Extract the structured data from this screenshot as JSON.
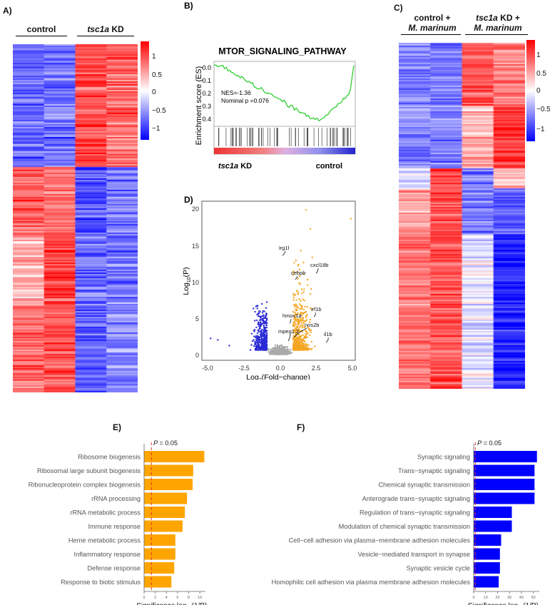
{
  "panels": {
    "A": {
      "label": "A)",
      "group1": "control",
      "group2_italic": "tsc1a",
      "group2_rest": " KD",
      "colorbar_ticks": [
        "1",
        "0.5",
        "0",
        "−0.5",
        "−1"
      ]
    },
    "B": {
      "label": "B)",
      "title": "MTOR_SIGNALING_PATHWAY",
      "ylabel": "Enrichment score (ES)",
      "yticks": [
        "0.0",
        "0.1",
        "0.2",
        "0.3",
        "0.4"
      ],
      "nes": "NES=-1.36",
      "pval": "Nominal p =0.076",
      "left_italic": "tsc1a",
      "left_rest": " KD",
      "right": "control",
      "colors": {
        "curve": "#22cc22"
      }
    },
    "C": {
      "label": "C)",
      "group1_line1": "control +",
      "group1_line2": "M. marinum",
      "group2_line1_italic": "tsc1a",
      "group2_line1_rest": " KD +",
      "group2_line2": "M. marinum",
      "colorbar_ticks": [
        "1",
        "0.5",
        "0",
        "−0.5",
        "−1"
      ]
    },
    "D": {
      "label": "D)",
      "xlabel_pre": "Log",
      "xlabel_sub": "2",
      "xlabel_post": "(Fold−change)",
      "ylabel_pre": "Log",
      "ylabel_sub": "10",
      "ylabel_post": "(P)",
      "xticks": [
        "-5.0",
        "-2.5",
        "0.0",
        "2.5",
        "5.0"
      ],
      "yticks": [
        "0",
        "5",
        "10",
        "15",
        "20"
      ],
      "genes": [
        "irg1l",
        "cxcl18b",
        "cebpb",
        "irf1b",
        "hmox1a",
        "nos2b",
        "mpeg1.2",
        "il1b"
      ],
      "colors": {
        "down": "#2b2bd6",
        "up": "#f5a623",
        "ns": "#aaaaaa"
      }
    },
    "E": {
      "label": "E)",
      "threshold": "P = 0.05",
      "xlabel": "Significance log",
      "xlabel_sub": "10",
      "xlabel_post": "(1/P)",
      "xticks": [
        "0",
        "2",
        "4",
        "6",
        "8",
        "10"
      ],
      "color": "#ffa500"
    },
    "F": {
      "label": "F)",
      "threshold": "P = 0.05",
      "xlabel": "Significance log",
      "xlabel_sub": "10",
      "xlabel_post": "(1/P)",
      "xticks": [
        "0",
        "10",
        "20",
        "30",
        "40",
        "50"
      ],
      "color": "#0000ff"
    }
  },
  "chart_data": [
    {
      "type": "bar",
      "panel": "E",
      "orientation": "horizontal",
      "categories": [
        "Ribosome biogenesis",
        "Ribosomal large subunit biogenesis",
        "Ribonucleoprotein complex biogenesis",
        "rRNA processing",
        "rRNA metabolic process",
        "Immune response",
        "Heme metabolic process",
        "Inflammatory response",
        "Defense response",
        "Response to biotic stimulus"
      ],
      "values": [
        10.8,
        8.8,
        8.7,
        7.7,
        7.3,
        6.9,
        5.6,
        5.6,
        5.4,
        4.9
      ],
      "xlim": [
        0,
        11
      ]
    },
    {
      "type": "bar",
      "panel": "F",
      "orientation": "horizontal",
      "categories": [
        "Synaptic signaling",
        "Trans−synaptic signaling",
        "Chemical synaptic transmission",
        "Anterograde trans−synaptic signaling",
        "Regulation of trans−synaptic signaling",
        "Modulation of chemical synaptic transmission",
        "Cell−cell adhesion via plasma−membrane adhesion molecules",
        "Vesicle−mediated transport in synapse",
        "Synaptic vesicle cycle",
        "Homophilic cell adhesion via plasma membrane adhesion molecules"
      ],
      "values": [
        53,
        51,
        51,
        51,
        32,
        32,
        23,
        22,
        22,
        21
      ],
      "xlim": [
        0,
        55
      ]
    }
  ]
}
